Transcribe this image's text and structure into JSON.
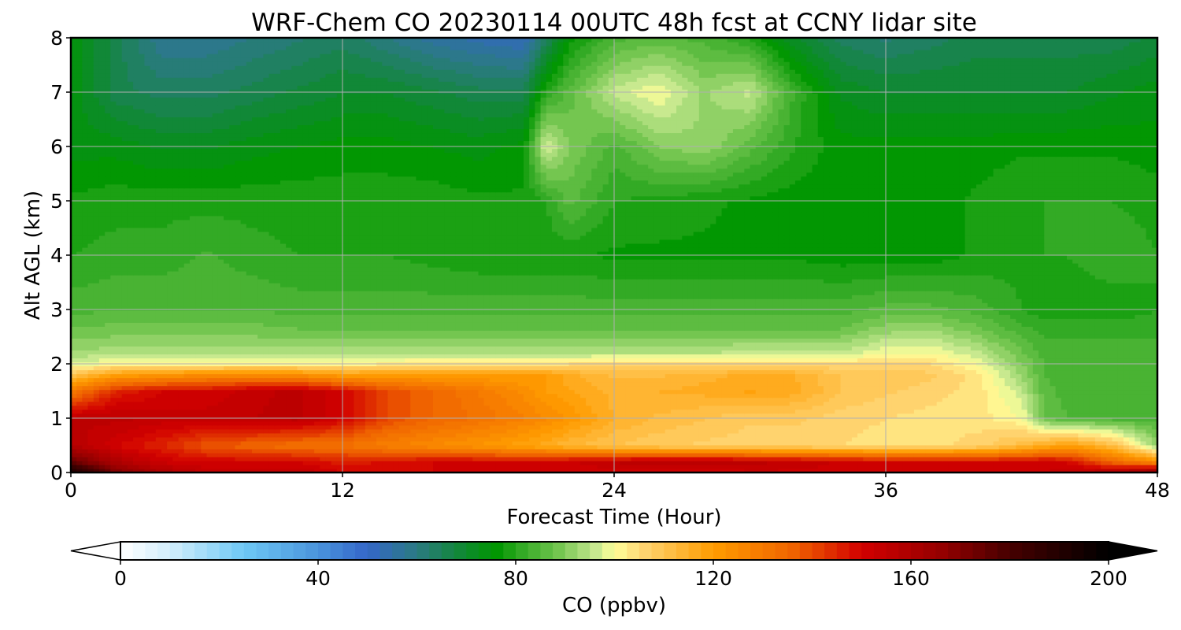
{
  "chart_data": {
    "type": "heatmap",
    "title": "WRF-Chem CO  20230114 00UTC 48h fcst at CCNY lidar site",
    "xlabel": "Forecast Time (Hour)",
    "ylabel": "Alt AGL (km)",
    "xlim": [
      0,
      48
    ],
    "ylim": [
      0,
      8
    ],
    "x_ticks": [
      "0",
      "12",
      "24",
      "36",
      "48"
    ],
    "y_ticks": [
      "0",
      "1",
      "2",
      "3",
      "4",
      "5",
      "6",
      "7",
      "8"
    ],
    "grid": true,
    "colorbar": {
      "label": "CO  (ppbv)",
      "min": 0,
      "max": 200,
      "step": 2.5,
      "extend": "both",
      "ticks": [
        "0",
        "40",
        "80",
        "120",
        "160",
        "200"
      ],
      "colors": [
        {
          "v": 0,
          "c": "#ffffff"
        },
        {
          "v": 10,
          "c": "#d2eefb"
        },
        {
          "v": 25,
          "c": "#6ec8f5"
        },
        {
          "v": 40,
          "c": "#4a94dc"
        },
        {
          "v": 50,
          "c": "#3466c8"
        },
        {
          "v": 60,
          "c": "#2b7a82"
        },
        {
          "v": 70,
          "c": "#0d8a2c"
        },
        {
          "v": 76,
          "c": "#009600"
        },
        {
          "v": 82,
          "c": "#3aad2a"
        },
        {
          "v": 88,
          "c": "#6cc24a"
        },
        {
          "v": 96,
          "c": "#c4e88e"
        },
        {
          "v": 100,
          "c": "#ffff9a"
        },
        {
          "v": 106,
          "c": "#ffd470"
        },
        {
          "v": 120,
          "c": "#ff9c00"
        },
        {
          "v": 136,
          "c": "#f06400"
        },
        {
          "v": 150,
          "c": "#d20000"
        },
        {
          "v": 166,
          "c": "#960000"
        },
        {
          "v": 180,
          "c": "#460000"
        },
        {
          "v": 200,
          "c": "#000000"
        }
      ]
    },
    "z_grid": {
      "x": [
        0,
        2,
        4,
        6,
        8,
        10,
        12,
        14,
        16,
        18,
        20,
        21,
        22,
        24,
        26,
        28,
        30,
        32,
        34,
        36,
        38,
        40,
        42,
        43,
        44,
        46,
        48
      ],
      "y": [
        0,
        0.2,
        0.5,
        1.0,
        1.5,
        1.8,
        2.0,
        2.2,
        2.6,
        3.0,
        4.0,
        5.0,
        6.0,
        7.0,
        8.0
      ],
      "z": [
        [
          195,
          170,
          160,
          155,
          155,
          155,
          150,
          150,
          150,
          150,
          152,
          152,
          152,
          150,
          150,
          150,
          152,
          152,
          152,
          152,
          152,
          152,
          152,
          152,
          155,
          160,
          170
        ],
        [
          175,
          160,
          152,
          150,
          150,
          150,
          146,
          148,
          150,
          150,
          150,
          150,
          152,
          155,
          158,
          158,
          156,
          154,
          152,
          150,
          150,
          150,
          150,
          152,
          150,
          135,
          125
        ],
        [
          158,
          150,
          145,
          138,
          135,
          132,
          132,
          128,
          125,
          122,
          118,
          116,
          113,
          110,
          108,
          107,
          106,
          106,
          105,
          104,
          104,
          106,
          112,
          116,
          120,
          112,
          92
        ],
        [
          155,
          156,
          154,
          154,
          155,
          156,
          150,
          140,
          135,
          132,
          128,
          125,
          122,
          115,
          112,
          110,
          108,
          108,
          106,
          105,
          104,
          104,
          100,
          88,
          85,
          84,
          84
        ],
        [
          130,
          145,
          150,
          150,
          154,
          156,
          150,
          140,
          135,
          130,
          124,
          120,
          118,
          114,
          115,
          116,
          118,
          116,
          110,
          108,
          106,
          104,
          96,
          86,
          84,
          84,
          84
        ],
        [
          110,
          120,
          122,
          125,
          125,
          124,
          120,
          120,
          120,
          120,
          120,
          120,
          116,
          112,
          112,
          114,
          116,
          115,
          110,
          110,
          108,
          104,
          92,
          85,
          84,
          84,
          84
        ],
        [
          98,
          101,
          101,
          101,
          102,
          102,
          101,
          103,
          104,
          104,
          104,
          104,
          105,
          106,
          106,
          106,
          106,
          106,
          105,
          106,
          105,
          100,
          90,
          85,
          84,
          84,
          84
        ],
        [
          93,
          94,
          94,
          94,
          94,
          94,
          94,
          94,
          94,
          94,
          94,
          94,
          94,
          95,
          95,
          95,
          96,
          96,
          96,
          100,
          100,
          96,
          88,
          84,
          84,
          84,
          84
        ],
        [
          88,
          89,
          89,
          89,
          89,
          88,
          88,
          88,
          88,
          88,
          88,
          88,
          88,
          88,
          88,
          88,
          88,
          88,
          88,
          92,
          93,
          89,
          84,
          82,
          82,
          82,
          82
        ],
        [
          84,
          85,
          85,
          85,
          85,
          84,
          84,
          84,
          84,
          84,
          84,
          84,
          84,
          84,
          84,
          84,
          84,
          84,
          84,
          86,
          86,
          84,
          80,
          78,
          78,
          78,
          80
        ],
        [
          80,
          81,
          81,
          83,
          81,
          80,
          80,
          80,
          79,
          78,
          78,
          78,
          78,
          77,
          77,
          77,
          77,
          77,
          76,
          76,
          76,
          78,
          79,
          80,
          80,
          82,
          80
        ],
        [
          78,
          79,
          79,
          79,
          79,
          79,
          79,
          79,
          79,
          78,
          78,
          80,
          86,
          80,
          79,
          78,
          77,
          76,
          76,
          76,
          76,
          78,
          80,
          80,
          80,
          80,
          79
        ],
        [
          74,
          74,
          72,
          72,
          74,
          75,
          76,
          76,
          75,
          74,
          76,
          98,
          90,
          84,
          90,
          92,
          86,
          80,
          76,
          76,
          76,
          76,
          77,
          77,
          77,
          77,
          76
        ],
        [
          74,
          66,
          64,
          64,
          66,
          68,
          70,
          70,
          68,
          66,
          66,
          80,
          86,
          96,
          100,
          92,
          96,
          82,
          72,
          70,
          70,
          70,
          70,
          70,
          70,
          72,
          74
        ],
        [
          74,
          66,
          58,
          58,
          60,
          62,
          64,
          60,
          56,
          54,
          52,
          64,
          76,
          84,
          86,
          84,
          80,
          70,
          64,
          62,
          64,
          66,
          66,
          66,
          66,
          66,
          68
        ]
      ]
    }
  }
}
